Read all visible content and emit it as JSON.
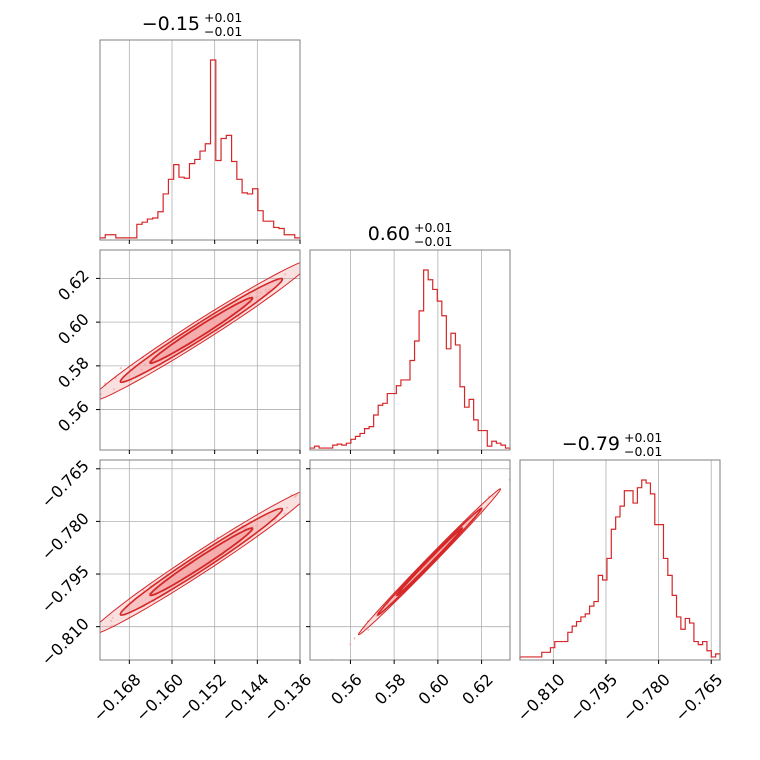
{
  "chart_data": {
    "type": "corner",
    "color": "#d62728",
    "fill_color": "#f4a6a6",
    "axis_color": "#808080",
    "grid_color": "#b0b0b0",
    "grid": true,
    "parameters": [
      {
        "title": {
          "median": "−0.15",
          "plus": "+0.01",
          "minus": "−0.01"
        },
        "range": [
          -0.1735,
          -0.136
        ],
        "ticks": [
          {
            "value": -0.168,
            "label": "−0.168"
          },
          {
            "value": -0.16,
            "label": "−0.160"
          },
          {
            "value": -0.152,
            "label": "−0.152"
          },
          {
            "value": -0.144,
            "label": "−0.144"
          },
          {
            "value": -0.136,
            "label": "−0.136"
          }
        ],
        "hist": [
          2,
          5,
          5,
          2,
          2,
          2,
          2,
          15,
          17,
          20,
          21,
          27,
          44,
          58,
          72,
          60,
          59,
          73,
          77,
          85,
          92,
          172,
          76,
          97,
          100,
          75,
          58,
          45,
          44,
          49,
          28,
          18,
          18,
          12,
          11,
          5,
          5,
          2
        ]
      },
      {
        "title": {
          "median": "0.60",
          "plus": "+0.01",
          "minus": "−0.01"
        },
        "range": [
          0.5415,
          0.633
        ],
        "ticks": [
          {
            "value": 0.56,
            "label": "0.56"
          },
          {
            "value": 0.58,
            "label": "0.58"
          },
          {
            "value": 0.6,
            "label": "0.60"
          },
          {
            "value": 0.62,
            "label": "0.62"
          }
        ],
        "hist": [
          2,
          4,
          2,
          2,
          2,
          5,
          6,
          5,
          7,
          11,
          14,
          17,
          22,
          24,
          36,
          46,
          48,
          58,
          58,
          66,
          72,
          72,
          92,
          112,
          143,
          185,
          175,
          165,
          153,
          138,
          104,
          120,
          108,
          65,
          44,
          52,
          31,
          20,
          20,
          4,
          9,
          7,
          5,
          2
        ]
      },
      {
        "title": {
          "median": "−0.79",
          "plus": "+0.01",
          "minus": "−0.01"
        },
        "range": [
          -0.8195,
          -0.7625
        ],
        "ticks": [
          {
            "value": -0.81,
            "label": "−0.810"
          },
          {
            "value": -0.795,
            "label": "−0.795"
          },
          {
            "value": -0.78,
            "label": "−0.780"
          },
          {
            "value": -0.765,
            "label": "−0.765"
          }
        ],
        "hist": [
          2,
          2,
          2,
          2,
          2,
          5,
          5,
          8,
          12,
          12,
          12,
          18,
          22,
          25,
          28,
          30,
          35,
          38,
          55,
          52,
          66,
          85,
          93,
          100,
          110,
          110,
          102,
          112,
          117,
          115,
          108,
          88,
          88,
          66,
          55,
          42,
          28,
          20,
          27,
          24,
          12,
          10,
          12,
          6,
          2,
          4
        ]
      }
    ],
    "pairs": [
      {
        "row": 1,
        "col": 0,
        "mean": [
          -0.1545,
          0.5962
        ],
        "sd": [
          0.008,
          0.0125
        ],
        "corr": 0.985
      },
      {
        "row": 2,
        "col": 0,
        "mean": [
          -0.1545,
          -0.7915
        ],
        "sd": [
          0.008,
          0.008
        ],
        "corr": 0.985
      },
      {
        "row": 2,
        "col": 1,
        "mean": [
          0.5962,
          -0.7915
        ],
        "sd": [
          0.0125,
          0.008
        ],
        "corr": 0.997
      }
    ]
  }
}
